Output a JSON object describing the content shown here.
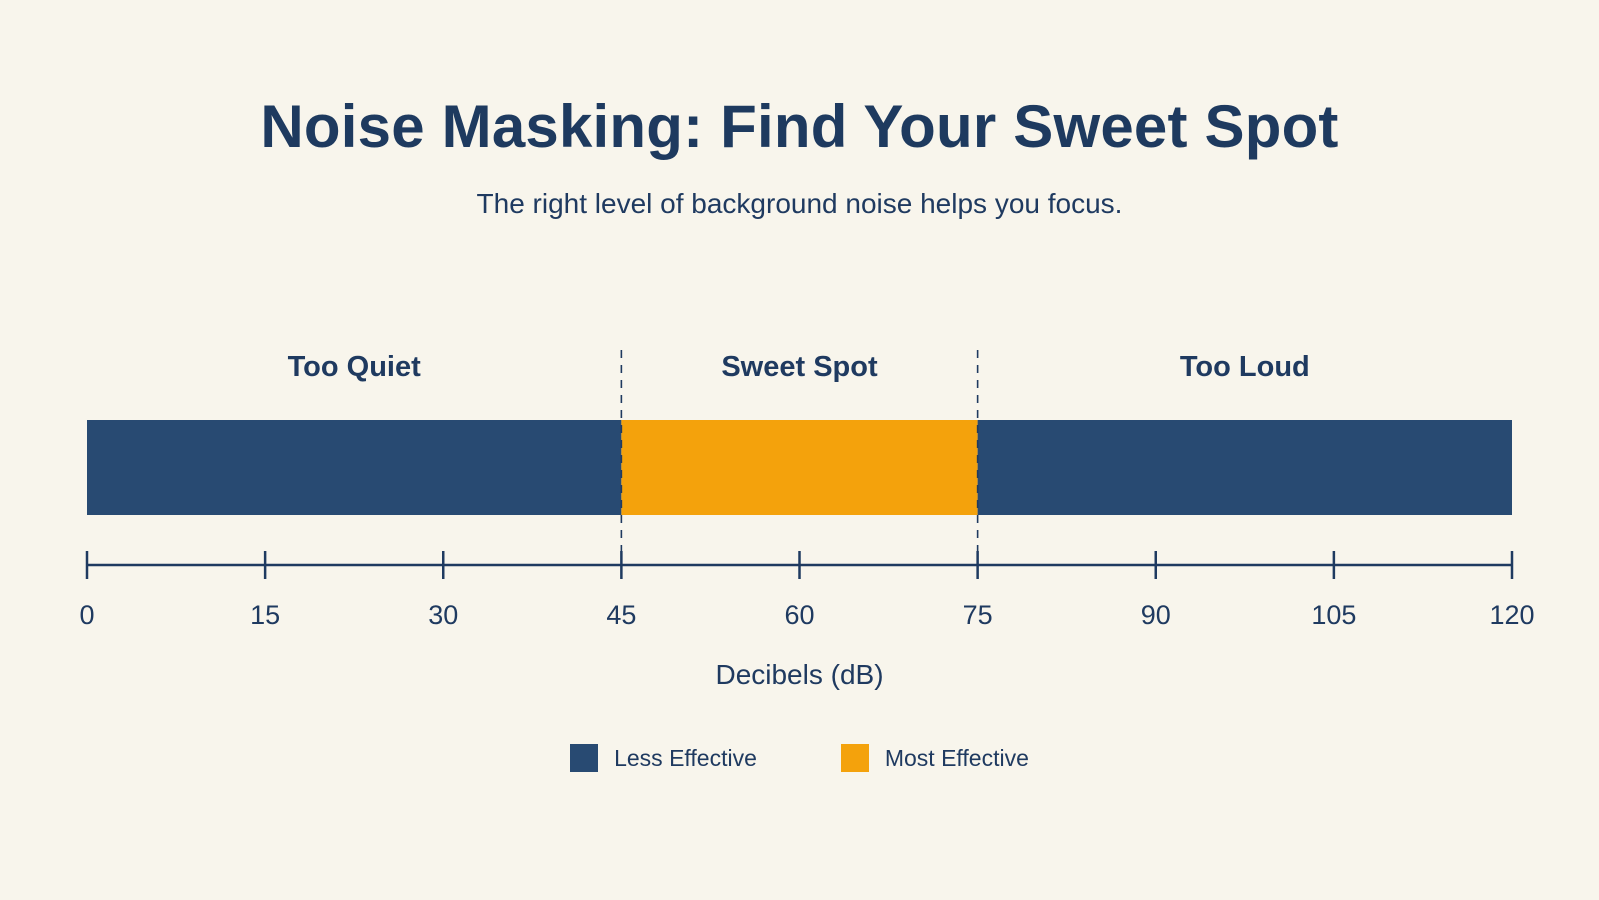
{
  "chart_data": {
    "type": "bar",
    "title": "Noise Masking: Find Your Sweet Spot",
    "subtitle": "The right level of background noise helps you focus.",
    "xlabel": "Decibels (dB)",
    "xlim": [
      0,
      120
    ],
    "ticks": [
      "0",
      "15",
      "30",
      "45",
      "60",
      "75",
      "90",
      "105",
      "120"
    ],
    "tick_values": [
      0,
      15,
      30,
      45,
      60,
      75,
      90,
      105,
      120
    ],
    "segments": [
      {
        "label": "Too Quiet",
        "start": 0,
        "end": 45,
        "category": "Less Effective",
        "color": "#284a72"
      },
      {
        "label": "Sweet Spot",
        "start": 45,
        "end": 75,
        "category": "Most Effective",
        "color": "#f4a20c"
      },
      {
        "label": "Too Loud",
        "start": 75,
        "end": 120,
        "category": "Less Effective",
        "color": "#284a72"
      }
    ],
    "legend": [
      {
        "label": "Less Effective",
        "color": "#284a72"
      },
      {
        "label": "Most Effective",
        "color": "#f4a20c"
      }
    ],
    "legend_position": "bottom-center"
  }
}
